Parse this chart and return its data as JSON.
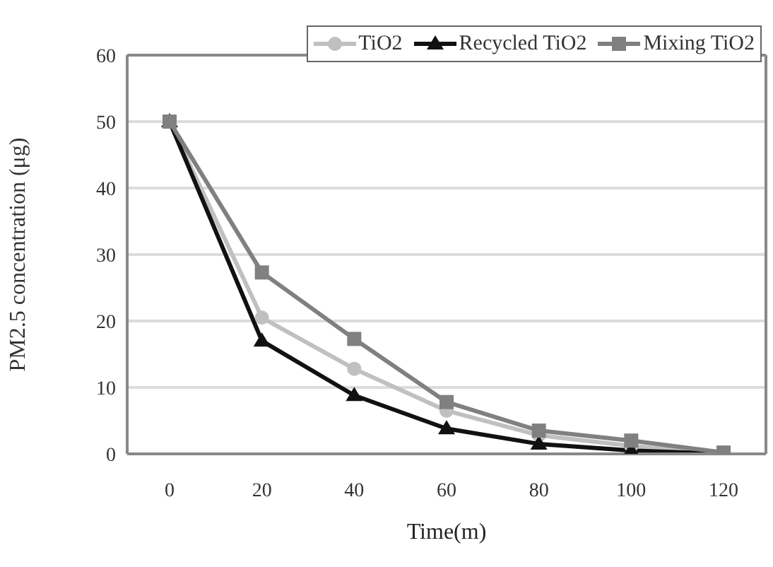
{
  "chart_data": {
    "type": "line",
    "xlabel": "Time(m)",
    "ylabel": "PM2.5 concentration (μg)",
    "categories": [
      "0",
      "20",
      "40",
      "60",
      "80",
      "100",
      "120"
    ],
    "series": [
      {
        "name": "TiO2",
        "color": "#c0c0c0",
        "marker": "circle",
        "values": [
          50,
          20.5,
          12.8,
          6.5,
          2.8,
          1.2,
          0
        ]
      },
      {
        "name": "Recycled TiO2",
        "color": "#111111",
        "marker": "triangle",
        "values": [
          50,
          17,
          8.8,
          3.8,
          1.5,
          0.5,
          0
        ]
      },
      {
        "name": "Mixing TiO2",
        "color": "#808080",
        "marker": "square",
        "values": [
          50,
          27.3,
          17.3,
          7.8,
          3.5,
          2,
          0.2
        ]
      }
    ],
    "ylim": [
      0,
      60
    ],
    "yticks": [
      0,
      10,
      20,
      30,
      40,
      50,
      60
    ],
    "grid": "y",
    "legend": "top right"
  }
}
